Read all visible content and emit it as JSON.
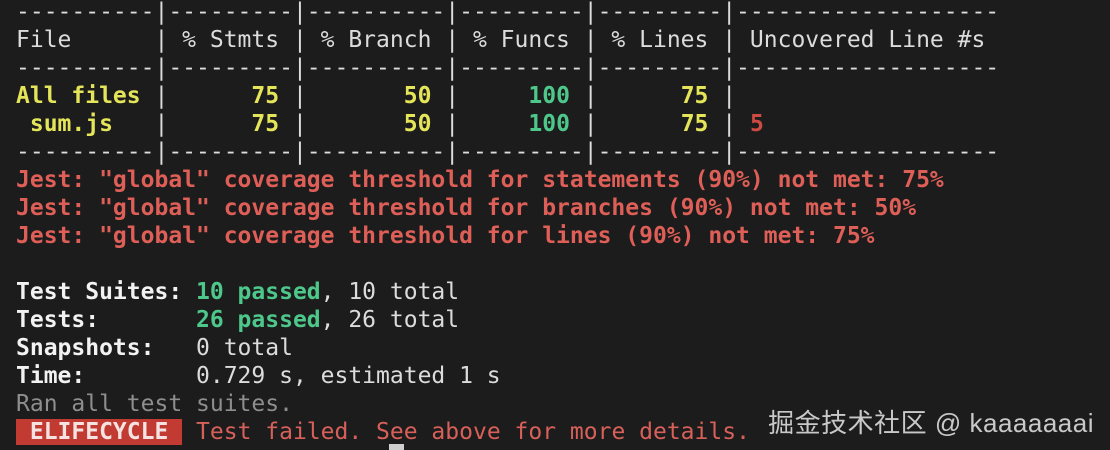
{
  "palette": {
    "background": "#1c1c1c",
    "foreground": "#dcdcdc",
    "bright_white": "#f2f2f2",
    "dim_gray": "#8e8e8e",
    "yellow": "#e5e55a",
    "green": "#4dc88a",
    "red": "#d8605a",
    "red_bright": "#de5f57",
    "red_brick": "#cf4b42",
    "badge_bg": "#c13b32",
    "badge_fg": "#f5e3e1",
    "cursor": "#cfcfcf",
    "watermark": "#c9c9c9"
  },
  "coverage_table": {
    "columns": [
      "File",
      "% Stmts",
      "% Branch",
      "% Funcs",
      "% Lines",
      "Uncovered Line #s"
    ],
    "rows": [
      {
        "file": "All files",
        "stmts": "75",
        "branch": "50",
        "funcs": "100",
        "lines": "75",
        "uncovered": ""
      },
      {
        "file": "sum.js",
        "stmts": "75",
        "branch": "50",
        "funcs": "100",
        "lines": "75",
        "uncovered": "5"
      }
    ]
  },
  "warnings": [
    "Jest: \"global\" coverage threshold for statements (90%) not met: 75%",
    "Jest: \"global\" coverage threshold for branches (90%) not met: 50%",
    "Jest: \"global\" coverage threshold for lines (90%) not met: 75%"
  ],
  "summary": {
    "test_suites": {
      "label": "Test Suites:",
      "passed": "10 passed",
      "total": ", 10 total"
    },
    "tests": {
      "label": "Tests:",
      "passed": "26 passed",
      "total": ", 26 total"
    },
    "snapshots": {
      "label": "Snapshots:",
      "total": "0 total"
    },
    "time": {
      "label": "Time:",
      "value": "0.729 s, estimated 1 s"
    },
    "ran": "Ran all test suites.",
    "error_badge": " ELIFECYCLE ",
    "error_message": "Test failed. See above for more details."
  },
  "watermark": {
    "text": "掘金技术社区 @ kaaaaaaai"
  },
  "terminal": {
    "lines": [
      {
        "name": "coverage-table-border-top",
        "segments": [
          {
            "t": "----------|---------|----------|---------|---------|-------------------",
            "c": "fg"
          }
        ]
      },
      {
        "name": "coverage-table-header",
        "segments": [
          {
            "t": "File      | % Stmts | % Branch | % Funcs | % Lines | Uncovered Line #s ",
            "c": "fg"
          }
        ]
      },
      {
        "name": "coverage-table-border-mid",
        "segments": [
          {
            "t": "----------|---------|----------|---------|---------|-------------------",
            "c": "fg"
          }
        ]
      },
      {
        "name": "coverage-row-all-files",
        "segments": [
          {
            "t": "All files",
            "c": "yellow-b"
          },
          {
            "t": " |",
            "c": "fg"
          },
          {
            "t": "      75",
            "c": "yellow-b"
          },
          {
            "t": " |",
            "c": "fg"
          },
          {
            "t": "       50",
            "c": "yellow-b"
          },
          {
            "t": " |",
            "c": "fg"
          },
          {
            "t": "     100",
            "c": "green-b"
          },
          {
            "t": " |",
            "c": "fg"
          },
          {
            "t": "      75",
            "c": "yellow-b"
          },
          {
            "t": " |",
            "c": "fg"
          }
        ]
      },
      {
        "name": "coverage-row-sum-js",
        "segments": [
          {
            "t": " sum.js",
            "c": "yellow-b"
          },
          {
            "t": "   |",
            "c": "fg"
          },
          {
            "t": "      75",
            "c": "yellow-b"
          },
          {
            "t": " |",
            "c": "fg"
          },
          {
            "t": "       50",
            "c": "yellow-b"
          },
          {
            "t": " |",
            "c": "fg"
          },
          {
            "t": "     100",
            "c": "green-b"
          },
          {
            "t": " |",
            "c": "fg"
          },
          {
            "t": "      75",
            "c": "yellow-b"
          },
          {
            "t": " | ",
            "c": "fg"
          },
          {
            "t": "5",
            "c": "red2-b"
          }
        ]
      },
      {
        "name": "coverage-table-border-bottom",
        "segments": [
          {
            "t": "----------|---------|----------|---------|---------|-------------------",
            "c": "fg"
          }
        ]
      },
      {
        "name": "jest-threshold-warning-statements",
        "segments": [
          {
            "t": "Jest: \"global\" coverage threshold for statements (90%) not met: 75%",
            "c": "red-b"
          }
        ]
      },
      {
        "name": "jest-threshold-warning-branches",
        "segments": [
          {
            "t": "Jest: \"global\" coverage threshold for branches (90%) not met: 50%",
            "c": "red-b"
          }
        ]
      },
      {
        "name": "jest-threshold-warning-lines",
        "segments": [
          {
            "t": "Jest: \"global\" coverage threshold for lines (90%) not met: 75%",
            "c": "red-b"
          }
        ]
      },
      {
        "name": "blank-line",
        "segments": []
      },
      {
        "name": "summary-test-suites",
        "segments": [
          {
            "t": "Test Suites: ",
            "c": "white-b"
          },
          {
            "t": "10 passed",
            "c": "green-b"
          },
          {
            "t": ", 10 total",
            "c": "fg"
          }
        ]
      },
      {
        "name": "summary-tests",
        "segments": [
          {
            "t": "Tests:       ",
            "c": "white-b"
          },
          {
            "t": "26 passed",
            "c": "green-b"
          },
          {
            "t": ", 26 total",
            "c": "fg"
          }
        ]
      },
      {
        "name": "summary-snapshots",
        "segments": [
          {
            "t": "Snapshots:   ",
            "c": "white-b"
          },
          {
            "t": "0 total",
            "c": "fg"
          }
        ]
      },
      {
        "name": "summary-time",
        "segments": [
          {
            "t": "Time:        ",
            "c": "white-b"
          },
          {
            "t": "0.729 s, estimated 1 s",
            "c": "fg"
          }
        ]
      },
      {
        "name": "ran-all-test-suites",
        "segments": [
          {
            "t": "Ran all test suites.",
            "c": "dim"
          }
        ]
      },
      {
        "name": "elifecycle-error-line",
        "segments": [
          {
            "t": " ELIFECYCLE ",
            "c": "badge"
          },
          {
            "t": " ",
            "c": "fg"
          },
          {
            "t": "Test failed. See above for more details.",
            "c": "red"
          }
        ]
      }
    ]
  }
}
